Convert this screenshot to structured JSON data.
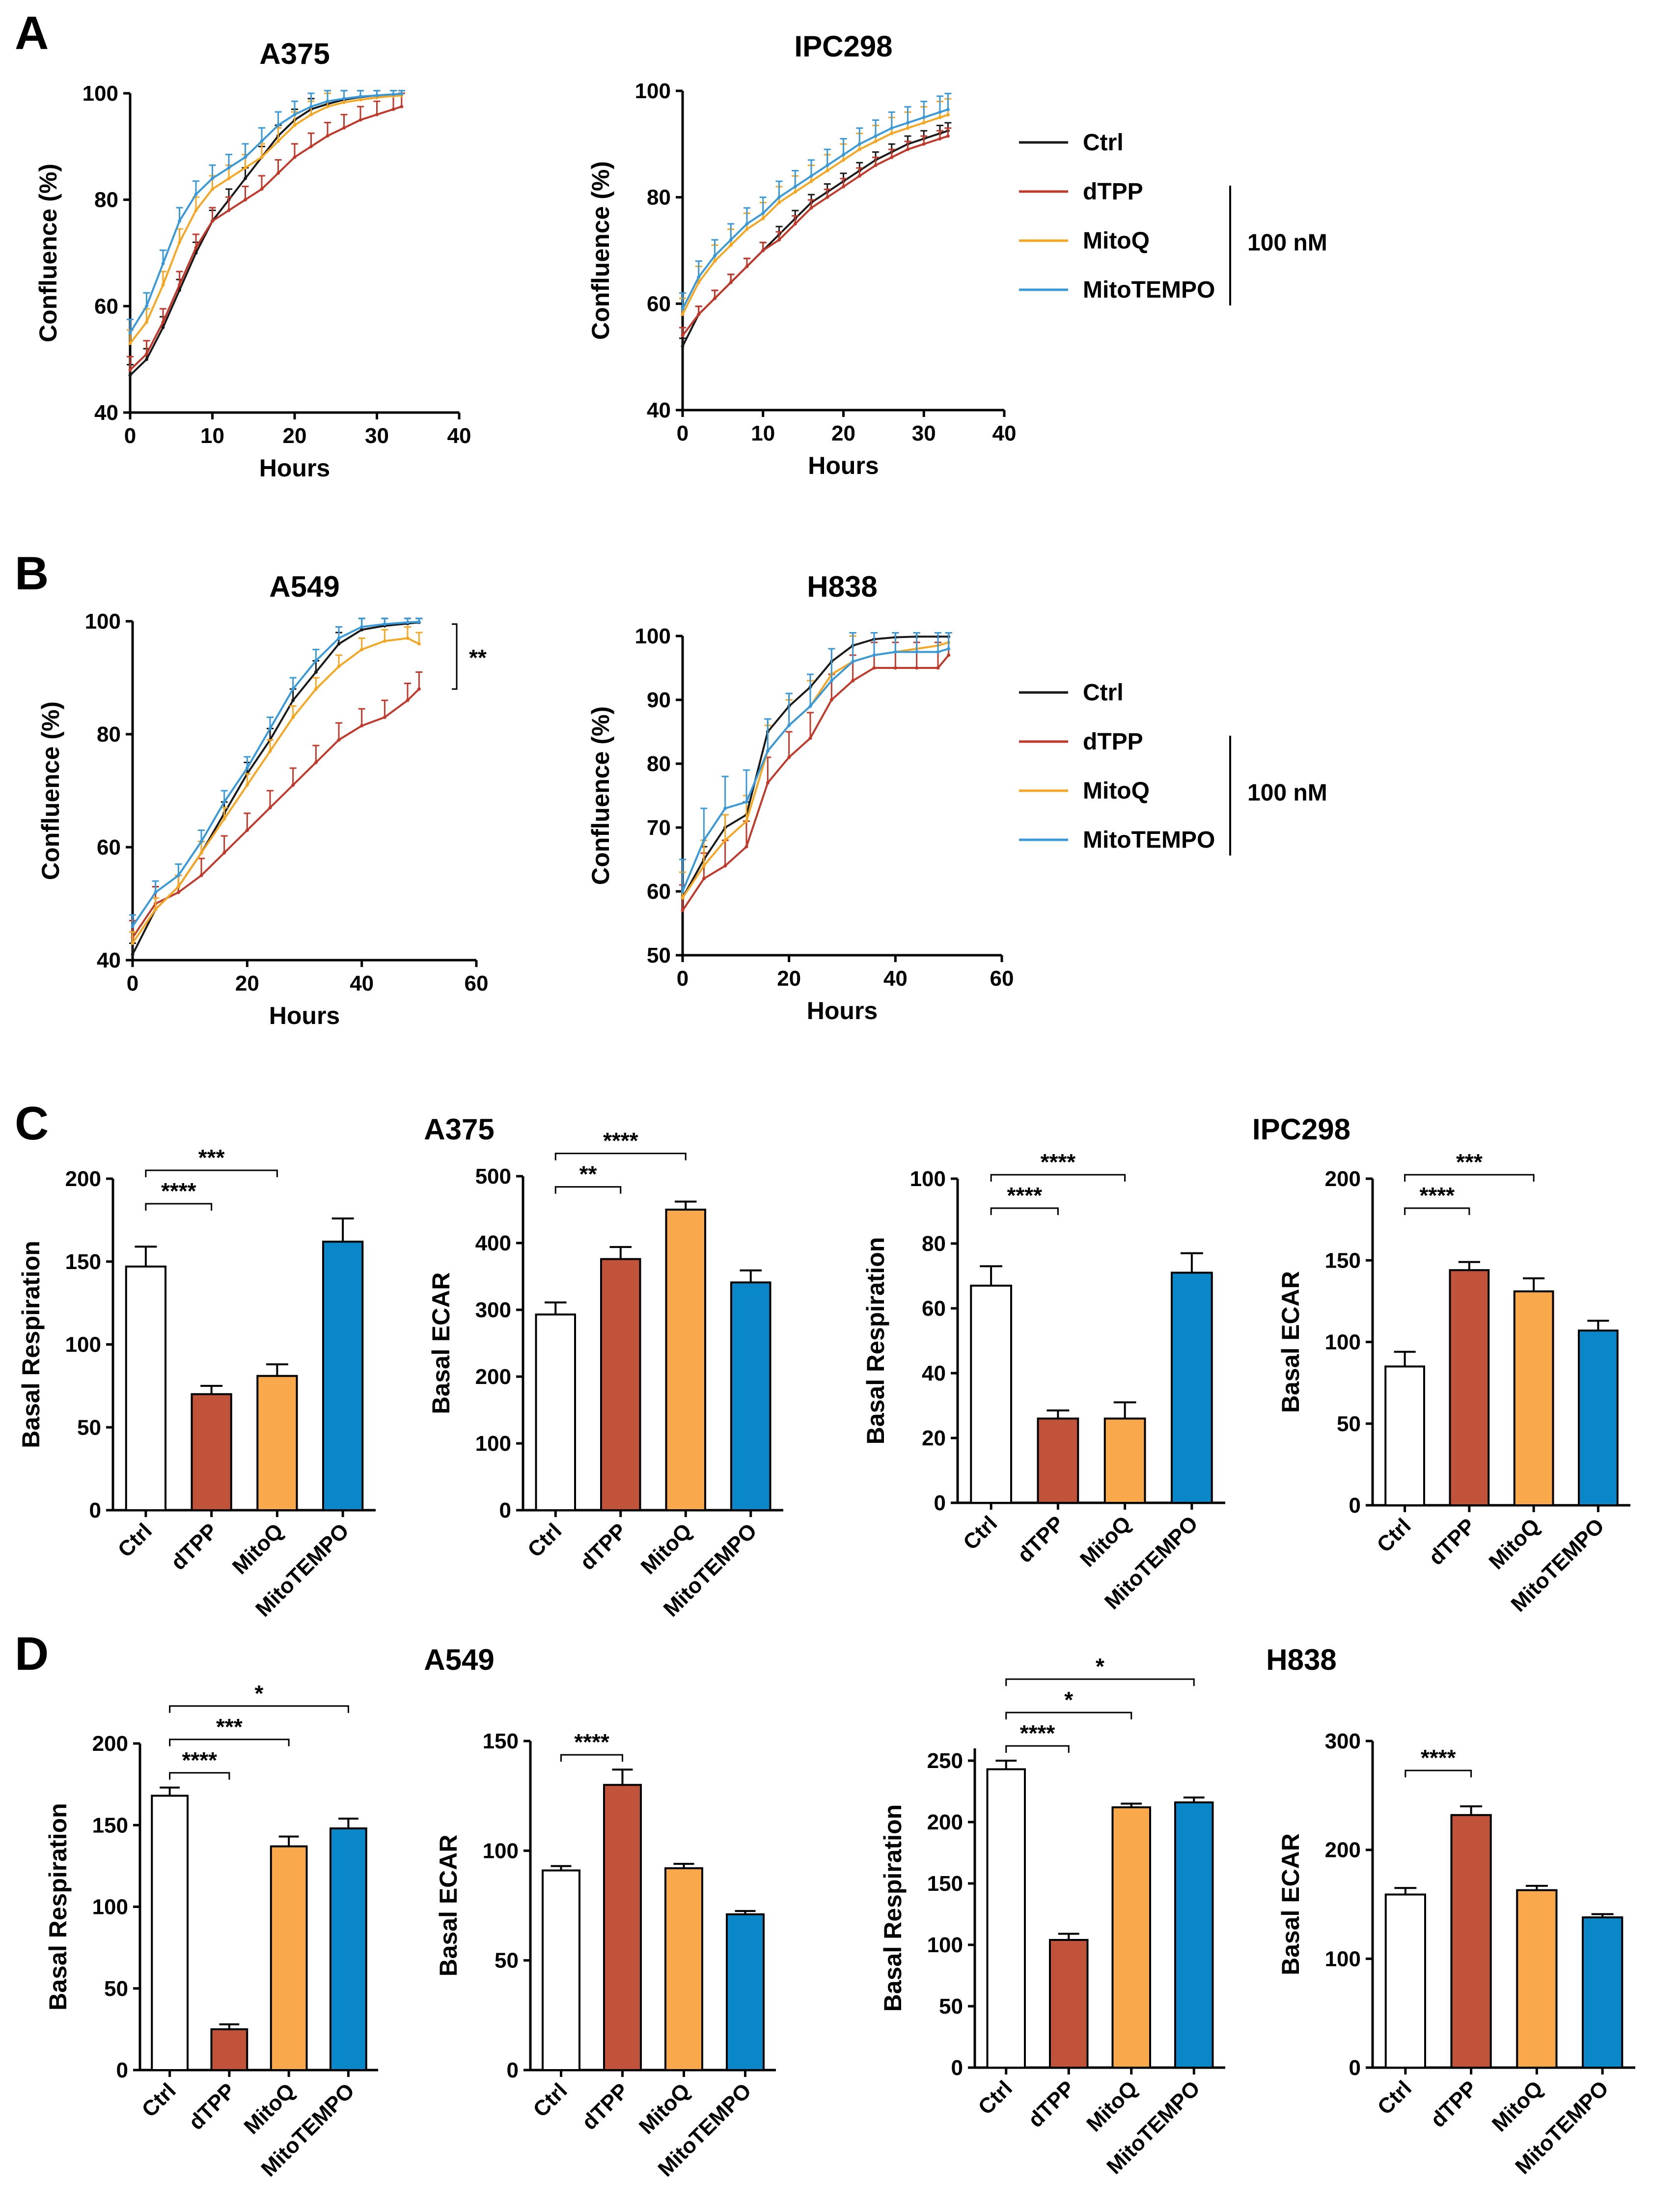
{
  "figure": {
    "panel_letters": [
      "A",
      "B",
      "C",
      "D"
    ],
    "section_titles": {
      "C_left": "A375",
      "C_right": "IPC298",
      "D_left": "A549",
      "D_right": "H838"
    },
    "legend": {
      "items": [
        {
          "label": "Ctrl",
          "color": "#1a1a1a"
        },
        {
          "label": "dTPP",
          "color": "#c0392b"
        },
        {
          "label": "MitoQ",
          "color": "#f5a623"
        },
        {
          "label": "MitoTEMPO",
          "color": "#3a9ad9"
        }
      ],
      "bracket_label": "100 nM"
    }
  },
  "chart_data": [
    {
      "id": "A375_conf",
      "type": "line",
      "title": "A375",
      "xlabel": "Hours",
      "ylabel": "Confluence (%)",
      "xlim": [
        0,
        40
      ],
      "ylim": [
        40,
        100
      ],
      "xticks": [
        0,
        10,
        20,
        30,
        40
      ],
      "yticks": [
        40,
        60,
        80,
        100
      ],
      "x": [
        0,
        2,
        4,
        6,
        8,
        10,
        12,
        14,
        16,
        18,
        20,
        22,
        24,
        26,
        28,
        30,
        32,
        33
      ],
      "series": [
        {
          "name": "Ctrl",
          "color": "#1a1a1a",
          "values": [
            47,
            50,
            56,
            63,
            70,
            76,
            80,
            84,
            88,
            92,
            95,
            97,
            98,
            98.8,
            99.3,
            99.6,
            99.8,
            99.9
          ],
          "err": 2
        },
        {
          "name": "dTPP",
          "color": "#c0392b",
          "values": [
            48,
            51,
            57,
            64,
            71,
            76,
            78,
            80,
            82,
            85,
            88,
            90,
            92,
            93.5,
            95,
            96,
            97,
            97.5
          ],
          "err": 2.5
        },
        {
          "name": "MitoQ",
          "color": "#f5a623",
          "values": [
            53,
            57,
            64,
            72,
            78,
            82,
            84,
            86,
            88,
            91,
            94,
            96,
            97.5,
            98.3,
            98.8,
            99.2,
            99.5,
            99.6
          ],
          "err": 2.5
        },
        {
          "name": "MitoTEMPO",
          "color": "#3a9ad9",
          "values": [
            55,
            60,
            68,
            76,
            81,
            84,
            86,
            88,
            91,
            94,
            96,
            97.5,
            98.5,
            99,
            99.4,
            99.6,
            99.8,
            99.9
          ],
          "err": 2.5
        }
      ]
    },
    {
      "id": "IPC298_conf",
      "type": "line",
      "title": "IPC298",
      "xlabel": "Hours",
      "ylabel": "Confluence (%)",
      "xlim": [
        0,
        40
      ],
      "ylim": [
        40,
        100
      ],
      "xticks": [
        0,
        10,
        20,
        30,
        40
      ],
      "yticks": [
        40,
        60,
        80,
        100
      ],
      "x": [
        0,
        2,
        4,
        6,
        8,
        10,
        12,
        14,
        16,
        18,
        20,
        22,
        24,
        26,
        28,
        30,
        32,
        33
      ],
      "series": [
        {
          "name": "Ctrl",
          "color": "#1a1a1a",
          "values": [
            52,
            58,
            61,
            64,
            67,
            70,
            73,
            76,
            79,
            81,
            83,
            85,
            87,
            88.5,
            90,
            91,
            92,
            92.5
          ],
          "err": 1.5
        },
        {
          "name": "dTPP",
          "color": "#c0392b",
          "values": [
            54,
            58,
            61,
            64,
            67,
            70,
            72,
            75,
            78,
            80,
            82,
            84,
            86,
            87.5,
            89,
            90,
            91,
            91.5
          ],
          "err": 1.5
        },
        {
          "name": "MitoQ",
          "color": "#f5a623",
          "values": [
            58,
            64,
            68,
            71,
            74,
            76,
            79,
            81,
            83,
            85,
            87,
            89,
            90.5,
            92,
            93,
            94,
            95,
            95.5
          ],
          "err": 3
        },
        {
          "name": "MitoTEMPO",
          "color": "#3a9ad9",
          "values": [
            59,
            65,
            69,
            72,
            75,
            77,
            80,
            82,
            84,
            86,
            88,
            90,
            91.5,
            93,
            94,
            95,
            96,
            96.5
          ],
          "err": 3
        }
      ]
    },
    {
      "id": "A549_conf",
      "type": "line",
      "title": "A549",
      "xlabel": "Hours",
      "ylabel": "Confluence (%)",
      "xlim": [
        0,
        60
      ],
      "ylim": [
        40,
        100
      ],
      "xticks": [
        0,
        20,
        40,
        60
      ],
      "yticks": [
        40,
        60,
        80,
        100
      ],
      "x": [
        0,
        4,
        8,
        12,
        16,
        20,
        24,
        28,
        32,
        36,
        40,
        44,
        48,
        50
      ],
      "series": [
        {
          "name": "Ctrl",
          "color": "#1a1a1a",
          "values": [
            41,
            49,
            53,
            59,
            66,
            73,
            79,
            86,
            91,
            96,
            98.5,
            99.2,
            99.6,
            99.8
          ],
          "err": 2
        },
        {
          "name": "dTPP",
          "color": "#c0392b",
          "values": [
            44,
            50,
            52,
            55,
            59,
            63,
            67,
            71,
            75,
            79,
            81.5,
            83,
            86,
            88
          ],
          "err": 3
        },
        {
          "name": "MitoQ",
          "color": "#f5a623",
          "values": [
            43,
            49,
            53,
            59,
            65,
            71,
            77,
            83,
            88,
            92,
            95,
            96.5,
            97,
            96
          ],
          "err": 2
        },
        {
          "name": "MitoTEMPO",
          "color": "#3a9ad9",
          "values": [
            46,
            52,
            55,
            61,
            68,
            74,
            81,
            88,
            93,
            97,
            99,
            99.5,
            99.8,
            99.9
          ],
          "err": 2
        }
      ],
      "annotation": "**"
    },
    {
      "id": "H838_conf",
      "type": "line",
      "title": "H838",
      "xlabel": "Hours",
      "ylabel": "Confluence (%)",
      "xlim": [
        0,
        60
      ],
      "ylim": [
        50,
        100
      ],
      "xticks": [
        0,
        20,
        40,
        60
      ],
      "yticks": [
        50,
        60,
        70,
        80,
        90,
        100
      ],
      "x": [
        0,
        4,
        8,
        12,
        16,
        20,
        24,
        28,
        32,
        36,
        40,
        44,
        48,
        50
      ],
      "series": [
        {
          "name": "Ctrl",
          "color": "#1a1a1a",
          "values": [
            59,
            65,
            70,
            72,
            85,
            89,
            92,
            96,
            98.5,
            99.5,
            99.8,
            99.9,
            99.9,
            99.9
          ],
          "err": 2
        },
        {
          "name": "dTPP",
          "color": "#c0392b",
          "values": [
            57,
            62,
            64,
            67,
            77,
            81,
            84,
            90,
            93,
            95,
            95,
            95,
            95,
            97
          ],
          "err": 4
        },
        {
          "name": "MitoQ",
          "color": "#f5a623",
          "values": [
            59,
            64,
            68,
            71,
            82,
            86,
            89,
            94,
            96,
            97,
            97.5,
            98,
            98.5,
            99
          ],
          "err": 4
        },
        {
          "name": "MitoTEMPO",
          "color": "#3a9ad9",
          "values": [
            60,
            68,
            73,
            74,
            82,
            86,
            89,
            93,
            96,
            97,
            97.5,
            97.5,
            97.5,
            98
          ],
          "err": 5
        }
      ]
    },
    {
      "id": "C_A375_resp",
      "type": "bar",
      "ylabel": "Basal Respiration",
      "categories": [
        "Ctrl",
        "dTPP",
        "MitoQ",
        "MitoTEMPO"
      ],
      "values": [
        147,
        70,
        81,
        162
      ],
      "errors": [
        12,
        5,
        7,
        14
      ],
      "ylim": [
        0,
        200
      ],
      "yticks": [
        0,
        50,
        100,
        150,
        200
      ],
      "significance": [
        {
          "from": 0,
          "to": 1,
          "label": "****"
        },
        {
          "from": 0,
          "to": 2,
          "label": "***"
        }
      ]
    },
    {
      "id": "C_A375_ecar",
      "type": "bar",
      "ylabel": "Basal ECAR",
      "categories": [
        "Ctrl",
        "dTPP",
        "MitoQ",
        "MitoTEMPO"
      ],
      "values": [
        293,
        376,
        450,
        341
      ],
      "errors": [
        18,
        18,
        12,
        18
      ],
      "ylim": [
        0,
        500
      ],
      "yticks": [
        0,
        100,
        200,
        300,
        400,
        500
      ],
      "significance": [
        {
          "from": 0,
          "to": 1,
          "label": "**"
        },
        {
          "from": 0,
          "to": 2,
          "label": "****"
        }
      ]
    },
    {
      "id": "C_IPC298_resp",
      "type": "bar",
      "ylabel": "Basal Respiration",
      "categories": [
        "Ctrl",
        "dTPP",
        "MitoQ",
        "MitoTEMPO"
      ],
      "values": [
        67,
        26,
        26,
        71
      ],
      "errors": [
        6,
        2.5,
        5,
        6
      ],
      "ylim": [
        0,
        100
      ],
      "yticks": [
        0,
        20,
        40,
        60,
        80,
        100
      ],
      "significance": [
        {
          "from": 0,
          "to": 1,
          "label": "****"
        },
        {
          "from": 0,
          "to": 2,
          "label": "****"
        }
      ]
    },
    {
      "id": "C_IPC298_ecar",
      "type": "bar",
      "ylabel": "Basal ECAR",
      "categories": [
        "Ctrl",
        "dTPP",
        "MitoQ",
        "MitoTEMPO"
      ],
      "values": [
        85,
        144,
        131,
        107
      ],
      "errors": [
        9,
        5,
        8,
        6
      ],
      "ylim": [
        0,
        200
      ],
      "yticks": [
        0,
        50,
        100,
        150,
        200
      ],
      "significance": [
        {
          "from": 0,
          "to": 1,
          "label": "****"
        },
        {
          "from": 0,
          "to": 2,
          "label": "***"
        }
      ]
    },
    {
      "id": "D_A549_resp",
      "type": "bar",
      "ylabel": "Basal Respiration",
      "categories": [
        "Ctrl",
        "dTPP",
        "MitoQ",
        "MitoTEMPO"
      ],
      "values": [
        168,
        25,
        137,
        148
      ],
      "errors": [
        5,
        3,
        6,
        6
      ],
      "ylim": [
        0,
        200
      ],
      "yticks": [
        0,
        50,
        100,
        150,
        200
      ],
      "significance": [
        {
          "from": 0,
          "to": 1,
          "label": "****"
        },
        {
          "from": 0,
          "to": 2,
          "label": "***"
        },
        {
          "from": 0,
          "to": 3,
          "label": "*"
        }
      ]
    },
    {
      "id": "D_A549_ecar",
      "type": "bar",
      "ylabel": "Basal ECAR",
      "categories": [
        "Ctrl",
        "dTPP",
        "MitoQ",
        "MitoTEMPO"
      ],
      "values": [
        91,
        130,
        92,
        71
      ],
      "errors": [
        2,
        7,
        2,
        1.5
      ],
      "ylim": [
        0,
        150
      ],
      "yticks": [
        0,
        50,
        100,
        150
      ],
      "significance": [
        {
          "from": 0,
          "to": 1,
          "label": "****"
        }
      ]
    },
    {
      "id": "D_H838_resp",
      "type": "bar",
      "ylabel": "Basal Respiration",
      "categories": [
        "Ctrl",
        "dTPP",
        "MitoQ",
        "MitoTEMPO"
      ],
      "values": [
        243,
        104,
        212,
        216
      ],
      "errors": [
        7,
        5,
        3,
        4
      ],
      "ylim": [
        0,
        260
      ],
      "yticks": [
        0,
        50,
        100,
        150,
        200,
        250
      ],
      "significance": [
        {
          "from": 0,
          "to": 1,
          "label": "****"
        },
        {
          "from": 0,
          "to": 2,
          "label": "*"
        },
        {
          "from": 0,
          "to": 3,
          "label": "*"
        }
      ]
    },
    {
      "id": "D_H838_ecar",
      "type": "bar",
      "ylabel": "Basal ECAR",
      "categories": [
        "Ctrl",
        "dTPP",
        "MitoQ",
        "MitoTEMPO"
      ],
      "values": [
        159,
        232,
        163,
        138
      ],
      "errors": [
        6,
        8,
        4,
        3
      ],
      "ylim": [
        0,
        300
      ],
      "yticks": [
        0,
        100,
        200,
        300
      ],
      "significance": [
        {
          "from": 0,
          "to": 1,
          "label": "****"
        }
      ]
    }
  ]
}
